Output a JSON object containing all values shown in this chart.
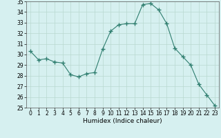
{
  "x": [
    0,
    1,
    2,
    3,
    4,
    5,
    6,
    7,
    8,
    9,
    10,
    11,
    12,
    13,
    14,
    15,
    16,
    17,
    18,
    19,
    20,
    21,
    22,
    23
  ],
  "y": [
    30.3,
    29.5,
    29.6,
    29.3,
    29.2,
    28.1,
    27.9,
    28.2,
    28.3,
    30.5,
    32.2,
    32.8,
    32.9,
    32.9,
    34.7,
    34.8,
    34.2,
    32.9,
    30.6,
    29.8,
    29.0,
    27.2,
    26.2,
    25.2
  ],
  "line_color": "#2e7d6e",
  "marker": "+",
  "marker_size": 4,
  "bg_color": "#d6f0f0",
  "grid_color": "#b8d8d0",
  "xlabel": "Humidex (Indice chaleur)",
  "ylim": [
    25,
    35
  ],
  "xlim": [
    -0.5,
    23.5
  ],
  "yticks": [
    25,
    26,
    27,
    28,
    29,
    30,
    31,
    32,
    33,
    34,
    35
  ],
  "xticks": [
    0,
    1,
    2,
    3,
    4,
    5,
    6,
    7,
    8,
    9,
    10,
    11,
    12,
    13,
    14,
    15,
    16,
    17,
    18,
    19,
    20,
    21,
    22,
    23
  ],
  "tick_labelsize": 5.5,
  "xlabel_fontsize": 6.5,
  "marker_edge_color": "#2e7d6e",
  "linewidth": 0.8
}
